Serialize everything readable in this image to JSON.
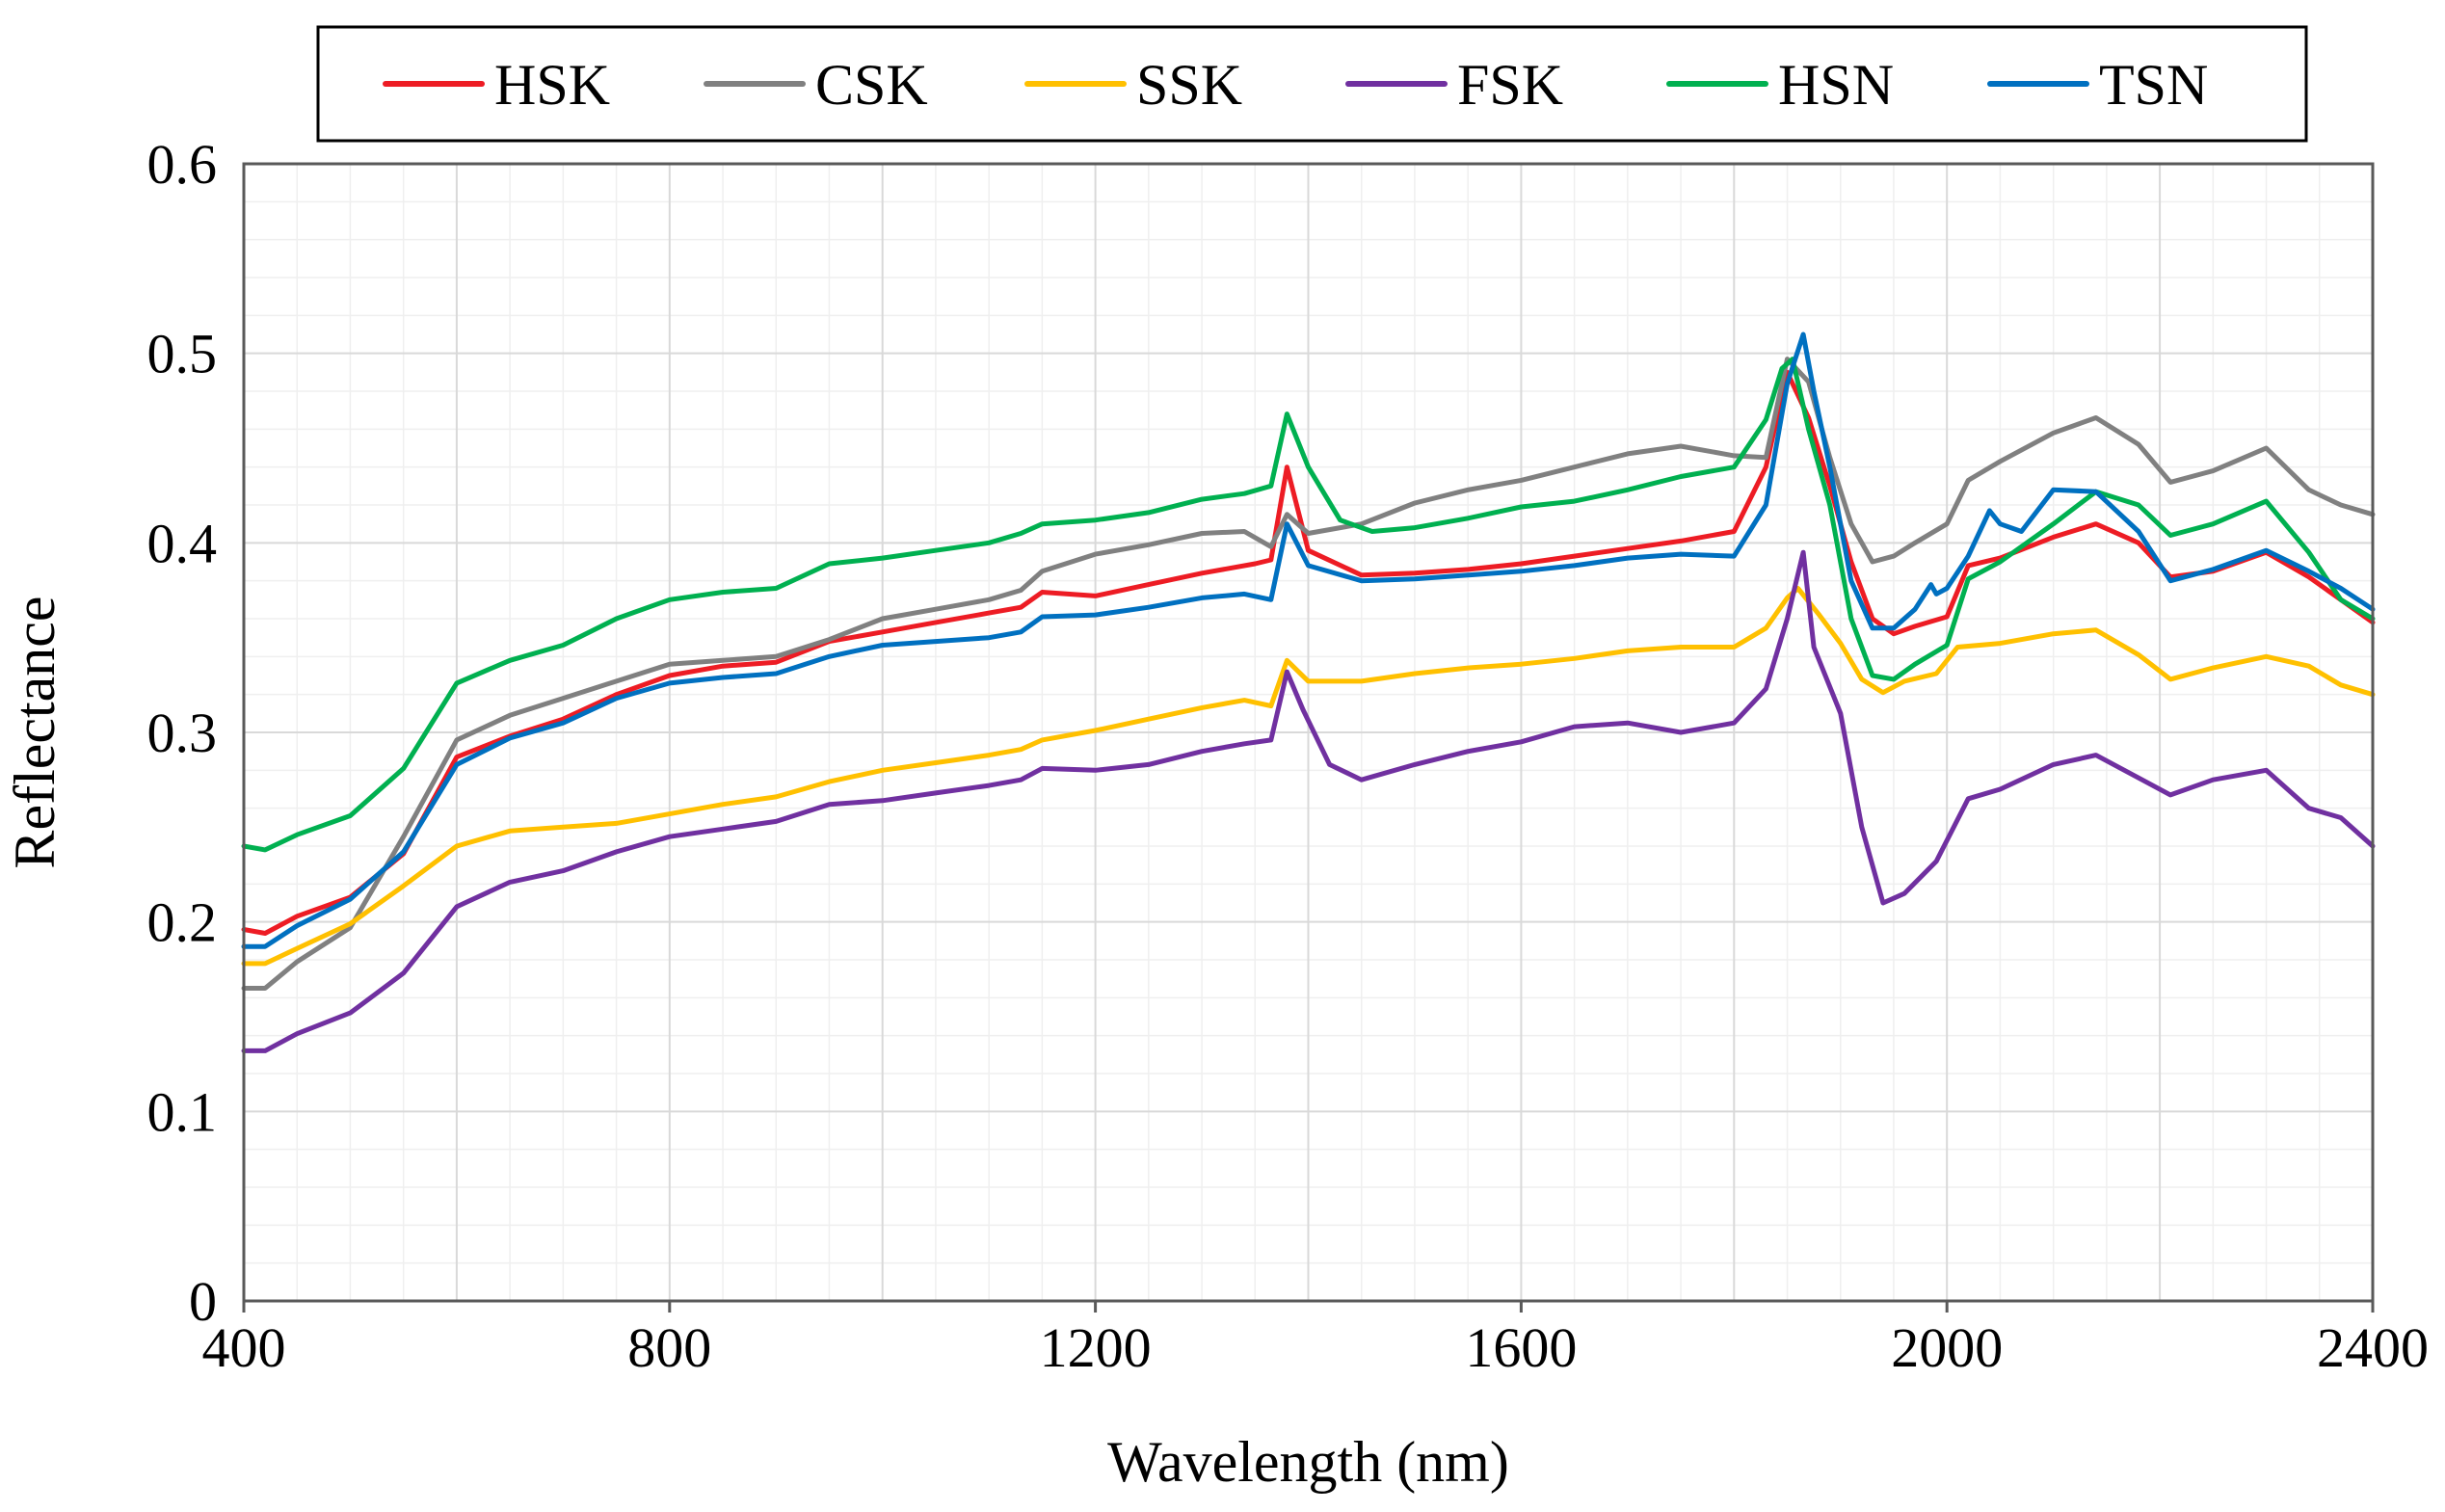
{
  "chart_data": {
    "type": "line",
    "title": "",
    "xlabel": "Wavelength (nm)",
    "ylabel": "Reflectance",
    "xlim": [
      400,
      2400
    ],
    "ylim": [
      0,
      0.6
    ],
    "x_ticks": [
      400,
      800,
      1200,
      1600,
      2000,
      2400
    ],
    "x_tick_labels": [
      "400",
      "800",
      "1200",
      "1600",
      "2000",
      "2400"
    ],
    "y_ticks": [
      0,
      0.1,
      0.2,
      0.3,
      0.4,
      0.5,
      0.6
    ],
    "y_tick_labels": [
      "0",
      "0.1",
      "0.2",
      "0.3",
      "0.4",
      "0.5",
      "0.6"
    ],
    "grid": true,
    "legend_position": "top",
    "series": [
      {
        "name": "HSK",
        "color": "#ed1c24",
        "x": [
          400,
          420,
          450,
          500,
          550,
          600,
          650,
          700,
          750,
          800,
          850,
          900,
          950,
          1000,
          1050,
          1100,
          1130,
          1150,
          1200,
          1250,
          1300,
          1350,
          1365,
          1380,
          1400,
          1450,
          1500,
          1550,
          1600,
          1650,
          1700,
          1750,
          1800,
          1830,
          1850,
          1870,
          1890,
          1910,
          1930,
          1950,
          1970,
          2000,
          2020,
          2050,
          2100,
          2140,
          2180,
          2210,
          2250,
          2300,
          2340,
          2370,
          2400
        ],
        "y": [
          0.196,
          0.194,
          0.203,
          0.213,
          0.236,
          0.287,
          0.298,
          0.307,
          0.32,
          0.33,
          0.335,
          0.337,
          0.348,
          0.353,
          0.358,
          0.363,
          0.366,
          0.374,
          0.372,
          0.378,
          0.384,
          0.389,
          0.391,
          0.44,
          0.396,
          0.383,
          0.384,
          0.386,
          0.389,
          0.393,
          0.397,
          0.401,
          0.406,
          0.44,
          0.49,
          0.466,
          0.43,
          0.39,
          0.36,
          0.352,
          0.356,
          0.361,
          0.388,
          0.392,
          0.403,
          0.41,
          0.4,
          0.382,
          0.385,
          0.395,
          0.382,
          0.37,
          0.358
        ]
      },
      {
        "name": "CSK",
        "color": "#808080",
        "x": [
          400,
          420,
          450,
          500,
          550,
          600,
          650,
          700,
          750,
          800,
          850,
          900,
          950,
          1000,
          1050,
          1100,
          1130,
          1150,
          1200,
          1250,
          1300,
          1340,
          1365,
          1380,
          1400,
          1450,
          1500,
          1550,
          1600,
          1650,
          1700,
          1750,
          1800,
          1830,
          1850,
          1870,
          1890,
          1910,
          1930,
          1950,
          1970,
          2000,
          2020,
          2050,
          2100,
          2140,
          2180,
          2210,
          2250,
          2300,
          2340,
          2370,
          2400
        ],
        "y": [
          0.165,
          0.165,
          0.179,
          0.197,
          0.245,
          0.296,
          0.309,
          0.318,
          0.327,
          0.336,
          0.338,
          0.34,
          0.349,
          0.36,
          0.365,
          0.37,
          0.375,
          0.385,
          0.394,
          0.399,
          0.405,
          0.406,
          0.398,
          0.415,
          0.405,
          0.41,
          0.421,
          0.428,
          0.433,
          0.44,
          0.447,
          0.451,
          0.446,
          0.445,
          0.497,
          0.485,
          0.445,
          0.41,
          0.39,
          0.393,
          0.4,
          0.41,
          0.433,
          0.443,
          0.458,
          0.466,
          0.452,
          0.432,
          0.438,
          0.45,
          0.428,
          0.42,
          0.415
        ]
      },
      {
        "name": "SSK",
        "color": "#ffc000",
        "x": [
          400,
          420,
          450,
          500,
          550,
          600,
          650,
          700,
          750,
          800,
          850,
          900,
          950,
          1000,
          1050,
          1100,
          1130,
          1150,
          1200,
          1250,
          1300,
          1340,
          1365,
          1380,
          1400,
          1450,
          1500,
          1550,
          1600,
          1650,
          1700,
          1750,
          1800,
          1830,
          1850,
          1860,
          1880,
          1900,
          1920,
          1940,
          1960,
          1990,
          2010,
          2050,
          2100,
          2140,
          2180,
          2210,
          2250,
          2300,
          2340,
          2370,
          2400
        ],
        "y": [
          0.178,
          0.178,
          0.186,
          0.199,
          0.219,
          0.24,
          0.248,
          0.25,
          0.252,
          0.257,
          0.262,
          0.266,
          0.274,
          0.28,
          0.284,
          0.288,
          0.291,
          0.296,
          0.301,
          0.307,
          0.313,
          0.317,
          0.314,
          0.338,
          0.327,
          0.327,
          0.331,
          0.334,
          0.336,
          0.339,
          0.343,
          0.345,
          0.345,
          0.355,
          0.371,
          0.376,
          0.362,
          0.347,
          0.328,
          0.321,
          0.327,
          0.331,
          0.345,
          0.347,
          0.352,
          0.354,
          0.341,
          0.328,
          0.334,
          0.34,
          0.335,
          0.325,
          0.32
        ]
      },
      {
        "name": "FSK",
        "color": "#7030a0",
        "x": [
          400,
          420,
          450,
          500,
          550,
          600,
          650,
          700,
          750,
          800,
          850,
          900,
          950,
          1000,
          1050,
          1100,
          1130,
          1150,
          1200,
          1250,
          1300,
          1340,
          1365,
          1380,
          1395,
          1420,
          1450,
          1500,
          1550,
          1600,
          1650,
          1700,
          1750,
          1800,
          1830,
          1850,
          1865,
          1875,
          1900,
          1920,
          1940,
          1960,
          1990,
          2020,
          2050,
          2100,
          2140,
          2180,
          2210,
          2250,
          2300,
          2340,
          2370,
          2400
        ],
        "y": [
          0.132,
          0.132,
          0.141,
          0.152,
          0.173,
          0.208,
          0.221,
          0.227,
          0.237,
          0.245,
          0.249,
          0.253,
          0.262,
          0.264,
          0.268,
          0.272,
          0.275,
          0.281,
          0.28,
          0.283,
          0.29,
          0.294,
          0.296,
          0.332,
          0.312,
          0.283,
          0.275,
          0.283,
          0.29,
          0.295,
          0.303,
          0.305,
          0.3,
          0.305,
          0.323,
          0.36,
          0.395,
          0.345,
          0.31,
          0.25,
          0.21,
          0.215,
          0.232,
          0.265,
          0.27,
          0.283,
          0.288,
          0.276,
          0.267,
          0.275,
          0.28,
          0.26,
          0.255,
          0.24
        ]
      },
      {
        "name": "HSN",
        "color": "#00b050",
        "x": [
          400,
          420,
          450,
          500,
          550,
          600,
          650,
          700,
          750,
          800,
          850,
          900,
          950,
          1000,
          1050,
          1100,
          1130,
          1150,
          1200,
          1250,
          1300,
          1340,
          1365,
          1380,
          1400,
          1430,
          1460,
          1500,
          1550,
          1600,
          1650,
          1700,
          1750,
          1800,
          1830,
          1845,
          1855,
          1870,
          1890,
          1910,
          1930,
          1950,
          1970,
          2000,
          2020,
          2050,
          2100,
          2140,
          2180,
          2210,
          2250,
          2300,
          2340,
          2370,
          2400
        ],
        "y": [
          0.24,
          0.238,
          0.246,
          0.256,
          0.281,
          0.326,
          0.338,
          0.346,
          0.36,
          0.37,
          0.374,
          0.376,
          0.389,
          0.392,
          0.396,
          0.4,
          0.405,
          0.41,
          0.412,
          0.416,
          0.423,
          0.426,
          0.43,
          0.468,
          0.44,
          0.412,
          0.406,
          0.408,
          0.413,
          0.419,
          0.422,
          0.428,
          0.435,
          0.44,
          0.465,
          0.492,
          0.497,
          0.46,
          0.42,
          0.36,
          0.33,
          0.328,
          0.336,
          0.346,
          0.381,
          0.39,
          0.41,
          0.427,
          0.42,
          0.404,
          0.41,
          0.422,
          0.395,
          0.37,
          0.36
        ]
      },
      {
        "name": "TSN",
        "color": "#0070c0",
        "x": [
          400,
          420,
          450,
          500,
          550,
          600,
          650,
          700,
          750,
          800,
          850,
          900,
          950,
          1000,
          1050,
          1100,
          1130,
          1150,
          1200,
          1250,
          1300,
          1340,
          1365,
          1380,
          1400,
          1450,
          1500,
          1550,
          1600,
          1650,
          1700,
          1750,
          1800,
          1830,
          1850,
          1865,
          1875,
          1890,
          1910,
          1930,
          1950,
          1970,
          1985,
          1990,
          2000,
          2020,
          2040,
          2050,
          2070,
          2100,
          2140,
          2180,
          2210,
          2250,
          2300,
          2340,
          2370,
          2400
        ],
        "y": [
          0.187,
          0.187,
          0.198,
          0.212,
          0.237,
          0.283,
          0.297,
          0.305,
          0.318,
          0.326,
          0.329,
          0.331,
          0.34,
          0.346,
          0.348,
          0.35,
          0.353,
          0.361,
          0.362,
          0.366,
          0.371,
          0.373,
          0.37,
          0.41,
          0.388,
          0.38,
          0.381,
          0.383,
          0.385,
          0.388,
          0.392,
          0.394,
          0.393,
          0.42,
          0.484,
          0.51,
          0.48,
          0.44,
          0.38,
          0.355,
          0.355,
          0.365,
          0.378,
          0.373,
          0.376,
          0.393,
          0.417,
          0.41,
          0.406,
          0.428,
          0.427,
          0.406,
          0.38,
          0.386,
          0.396,
          0.385,
          0.376,
          0.365
        ]
      }
    ]
  }
}
